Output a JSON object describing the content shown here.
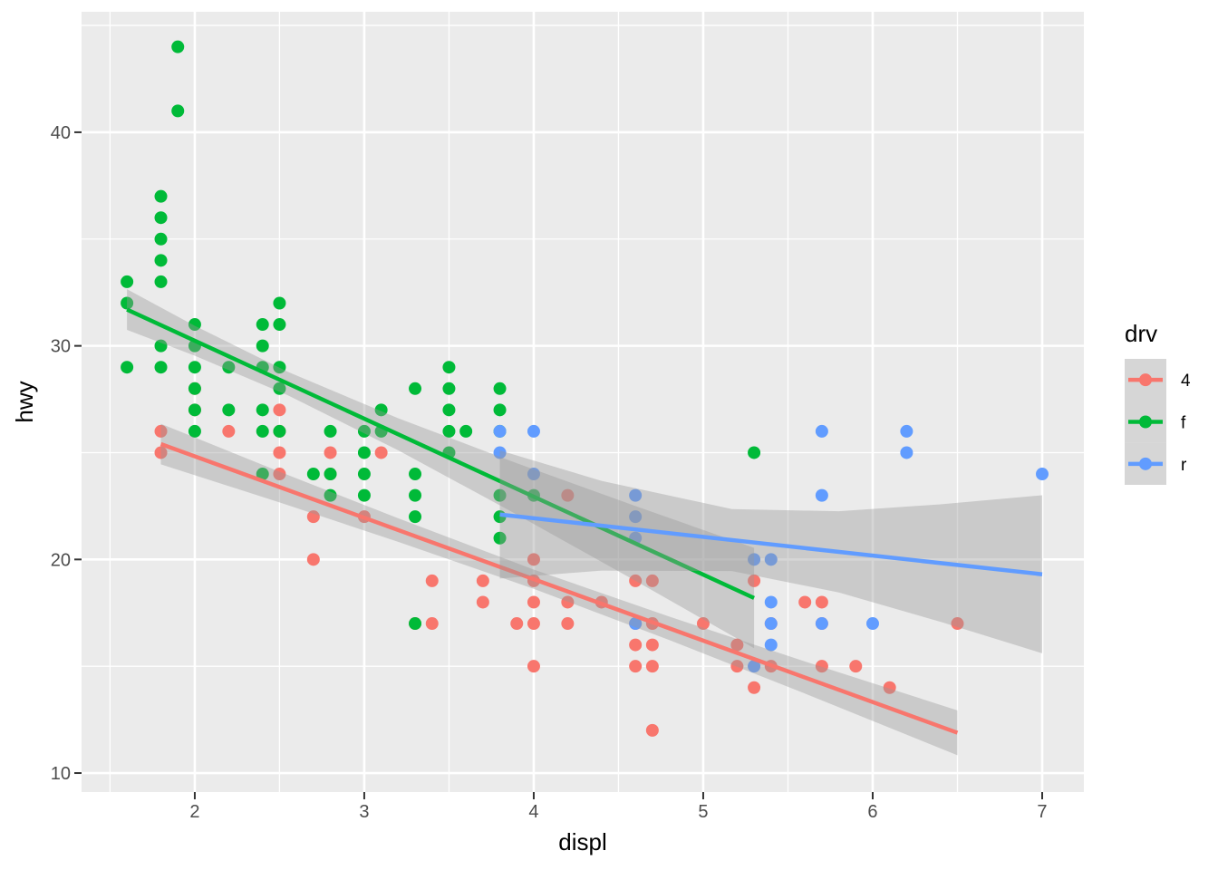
{
  "chart_data": {
    "type": "scatter",
    "title": "",
    "xlabel": "displ",
    "ylabel": "hwy",
    "x_ticks": [
      2,
      3,
      4,
      5,
      6,
      7
    ],
    "x_tick_labels": [
      "2",
      "3",
      "4",
      "5",
      "6",
      "7"
    ],
    "x_minor_ticks": [
      1.5,
      2.5,
      3.5,
      4.5,
      5.5,
      6.5
    ],
    "y_ticks": [
      10,
      20,
      30,
      40
    ],
    "y_tick_labels": [
      "10",
      "20",
      "30",
      "40"
    ],
    "y_minor_ticks": [
      15,
      25,
      35,
      45
    ],
    "xlim": [
      1.332,
      7.246
    ],
    "ylim": [
      9.11,
      45.64
    ],
    "grid": true,
    "legend_position": "right",
    "colors": {
      "panel_bg": "#EBEBEB",
      "grid": "#FFFFFF",
      "tick_mark": "#333333",
      "tick_label": "#4D4D4D",
      "axis_title": "#000000",
      "ribbon": "rgba(153,153,153,0.4)"
    },
    "legend": {
      "title": "drv",
      "entries": [
        {
          "label": "4",
          "color": "#F8766D"
        },
        {
          "label": "f",
          "color": "#00BA38"
        },
        {
          "label": "r",
          "color": "#619CFF"
        }
      ]
    },
    "series": [
      {
        "name": "4",
        "color": "#F8766D",
        "points": [
          [
            1.8,
            25
          ],
          [
            1.8,
            26
          ],
          [
            2.0,
            27
          ],
          [
            2.0,
            28
          ],
          [
            2.2,
            26
          ],
          [
            2.5,
            24
          ],
          [
            2.5,
            25
          ],
          [
            2.5,
            26
          ],
          [
            2.5,
            27
          ],
          [
            2.7,
            20
          ],
          [
            2.7,
            22
          ],
          [
            2.8,
            24
          ],
          [
            2.8,
            25
          ],
          [
            3.0,
            22
          ],
          [
            3.1,
            25
          ],
          [
            3.3,
            17
          ],
          [
            3.4,
            17
          ],
          [
            3.4,
            19
          ],
          [
            3.7,
            18
          ],
          [
            3.7,
            19
          ],
          [
            3.9,
            17
          ],
          [
            4.0,
            15
          ],
          [
            4.0,
            17
          ],
          [
            4.0,
            18
          ],
          [
            4.0,
            19
          ],
          [
            4.0,
            20
          ],
          [
            4.2,
            17
          ],
          [
            4.2,
            18
          ],
          [
            4.2,
            23
          ],
          [
            4.4,
            18
          ],
          [
            4.6,
            15
          ],
          [
            4.6,
            16
          ],
          [
            4.6,
            17
          ],
          [
            4.6,
            19
          ],
          [
            4.7,
            12
          ],
          [
            4.7,
            15
          ],
          [
            4.7,
            16
          ],
          [
            4.7,
            17
          ],
          [
            4.7,
            19
          ],
          [
            5.0,
            17
          ],
          [
            5.2,
            15
          ],
          [
            5.2,
            16
          ],
          [
            5.3,
            14
          ],
          [
            5.3,
            19
          ],
          [
            5.4,
            15
          ],
          [
            5.4,
            17
          ],
          [
            5.6,
            18
          ],
          [
            5.7,
            15
          ],
          [
            5.7,
            17
          ],
          [
            5.7,
            18
          ],
          [
            5.9,
            15
          ],
          [
            6.1,
            14
          ],
          [
            6.5,
            17
          ]
        ],
        "smooth": {
          "method": "lm",
          "x_range": [
            1.8,
            6.5
          ],
          "intercept": 30.58,
          "slope": -2.876,
          "ci_x": [
            1.8,
            2.5,
            3.2,
            4.0,
            4.8,
            5.6,
            6.5
          ],
          "ci_half_width": [
            0.95,
            0.72,
            0.55,
            0.45,
            0.55,
            0.75,
            1.05
          ]
        }
      },
      {
        "name": "f",
        "color": "#00BA38",
        "points": [
          [
            1.6,
            29
          ],
          [
            1.6,
            32
          ],
          [
            1.6,
            33
          ],
          [
            1.8,
            29
          ],
          [
            1.8,
            30
          ],
          [
            1.8,
            33
          ],
          [
            1.8,
            34
          ],
          [
            1.8,
            35
          ],
          [
            1.8,
            36
          ],
          [
            1.8,
            37
          ],
          [
            1.9,
            41
          ],
          [
            1.9,
            44
          ],
          [
            2.0,
            26
          ],
          [
            2.0,
            27
          ],
          [
            2.0,
            28
          ],
          [
            2.0,
            29
          ],
          [
            2.0,
            30
          ],
          [
            2.0,
            31
          ],
          [
            2.2,
            27
          ],
          [
            2.2,
            29
          ],
          [
            2.4,
            24
          ],
          [
            2.4,
            26
          ],
          [
            2.4,
            27
          ],
          [
            2.4,
            29
          ],
          [
            2.4,
            30
          ],
          [
            2.4,
            31
          ],
          [
            2.5,
            26
          ],
          [
            2.5,
            28
          ],
          [
            2.5,
            29
          ],
          [
            2.5,
            31
          ],
          [
            2.5,
            32
          ],
          [
            2.7,
            24
          ],
          [
            2.8,
            23
          ],
          [
            2.8,
            24
          ],
          [
            2.8,
            26
          ],
          [
            3.0,
            23
          ],
          [
            3.0,
            24
          ],
          [
            3.0,
            25
          ],
          [
            3.0,
            26
          ],
          [
            3.1,
            26
          ],
          [
            3.1,
            27
          ],
          [
            3.3,
            17
          ],
          [
            3.3,
            22
          ],
          [
            3.3,
            23
          ],
          [
            3.3,
            24
          ],
          [
            3.3,
            28
          ],
          [
            3.5,
            25
          ],
          [
            3.5,
            26
          ],
          [
            3.5,
            27
          ],
          [
            3.5,
            28
          ],
          [
            3.5,
            29
          ],
          [
            3.6,
            26
          ],
          [
            3.8,
            21
          ],
          [
            3.8,
            22
          ],
          [
            3.8,
            23
          ],
          [
            3.8,
            26
          ],
          [
            3.8,
            27
          ],
          [
            3.8,
            28
          ],
          [
            4.0,
            23
          ],
          [
            5.3,
            25
          ]
        ],
        "smooth": {
          "method": "lm",
          "x_range": [
            1.6,
            5.3
          ],
          "intercept": 37.54,
          "slope": -3.65,
          "ci_x": [
            1.6,
            2.0,
            2.55,
            3.2,
            3.9,
            4.6,
            5.3
          ],
          "ci_half_width": [
            0.95,
            0.7,
            0.55,
            0.75,
            1.2,
            1.75,
            2.35
          ]
        }
      },
      {
        "name": "r",
        "color": "#619CFF",
        "points": [
          [
            3.8,
            25
          ],
          [
            3.8,
            26
          ],
          [
            4.0,
            24
          ],
          [
            4.0,
            26
          ],
          [
            4.6,
            17
          ],
          [
            4.6,
            21
          ],
          [
            4.6,
            22
          ],
          [
            4.6,
            23
          ],
          [
            5.3,
            15
          ],
          [
            5.3,
            20
          ],
          [
            5.4,
            16
          ],
          [
            5.4,
            17
          ],
          [
            5.4,
            18
          ],
          [
            5.4,
            20
          ],
          [
            5.7,
            17
          ],
          [
            5.7,
            23
          ],
          [
            5.7,
            26
          ],
          [
            6.0,
            17
          ],
          [
            6.2,
            25
          ],
          [
            6.2,
            26
          ],
          [
            7.0,
            24
          ]
        ],
        "smooth": {
          "method": "lm",
          "x_range": [
            3.8,
            7.0
          ],
          "intercept": 25.43,
          "slope": -0.875,
          "ci_x": [
            3.8,
            4.4,
            5.17,
            5.8,
            6.4,
            7.0
          ],
          "ci_half_width": [
            3.0,
            2.1,
            1.45,
            1.9,
            2.75,
            3.7
          ]
        }
      }
    ]
  }
}
